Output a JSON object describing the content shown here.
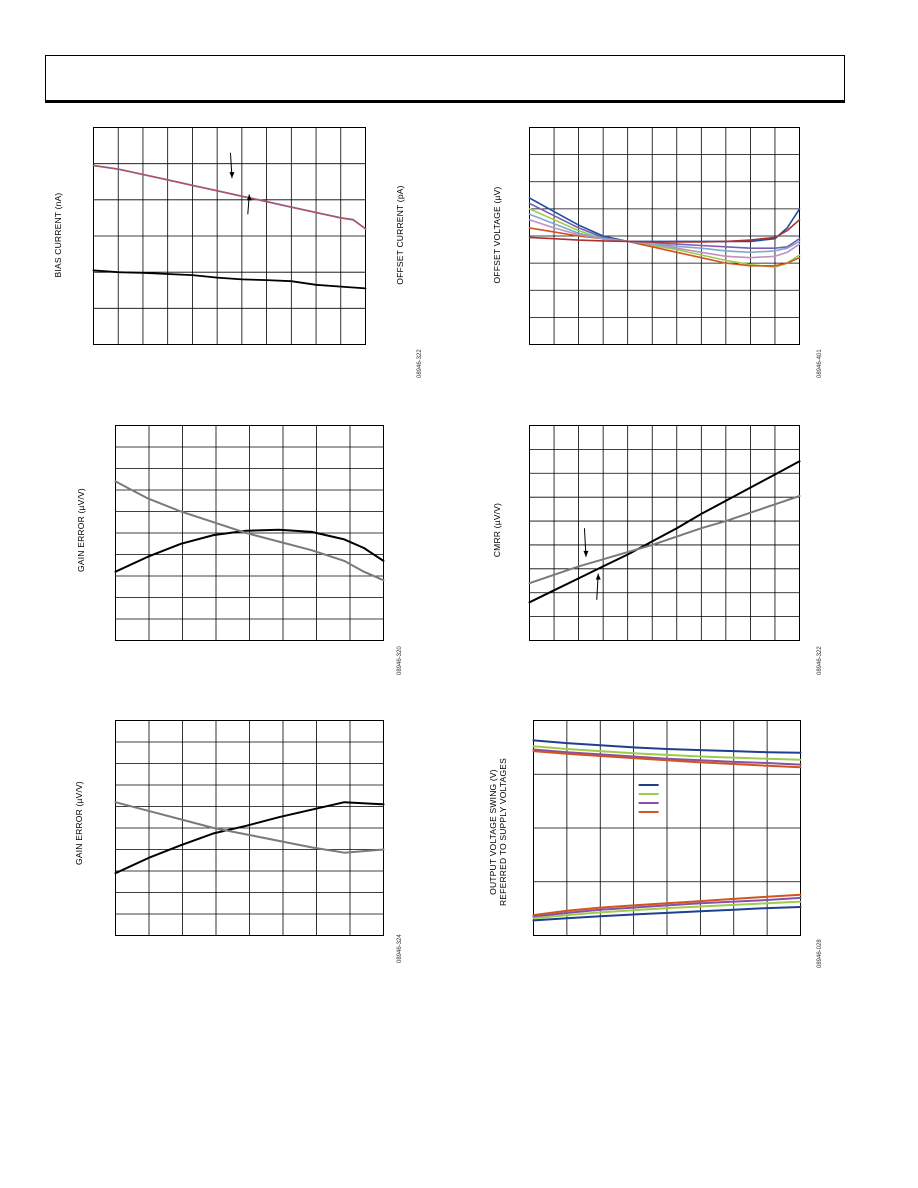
{
  "colors": {
    "black": "#000000",
    "gray": "#7a7a7a",
    "blue": "#1f3f8f",
    "green": "#9ccc4a",
    "purple": "#8a4fa6",
    "orange": "#d2541e",
    "grid": "#000000"
  },
  "chart_data": [
    {
      "id": "bias-offset",
      "type": "line",
      "ylabel": "BIAS CURRENT (nA)",
      "y2label": "OFFSET CURRENT (pA)",
      "code": "08946-322",
      "xlim": [
        0,
        11
      ],
      "ylim": [
        0,
        6
      ],
      "grid": {
        "vcols": 11,
        "hrows": 6
      },
      "series": [
        {
          "color": "#7a5fb0",
          "width": 1.8,
          "x": [
            0,
            1,
            2,
            3,
            4,
            5,
            6,
            7,
            8,
            9,
            10,
            10.5,
            11
          ],
          "y": [
            4.95,
            4.85,
            4.7,
            4.55,
            4.4,
            4.25,
            4.1,
            3.95,
            3.8,
            3.65,
            3.5,
            3.45,
            3.2
          ]
        },
        {
          "color": "#c0504d",
          "width": 1.0,
          "x": [
            0,
            1,
            2,
            3,
            4,
            5,
            6,
            7,
            8,
            9,
            10,
            10.5,
            11
          ],
          "y": [
            4.95,
            4.85,
            4.7,
            4.55,
            4.4,
            4.25,
            4.1,
            3.95,
            3.8,
            3.65,
            3.5,
            3.45,
            3.2
          ]
        },
        {
          "color": "#000000",
          "width": 1.8,
          "x": [
            0,
            1,
            2,
            3,
            4,
            5,
            6,
            7,
            8,
            9,
            10,
            11
          ],
          "y": [
            2.05,
            2.0,
            1.98,
            1.95,
            1.92,
            1.85,
            1.8,
            1.78,
            1.75,
            1.65,
            1.6,
            1.55
          ]
        }
      ],
      "arrows": [
        {
          "x": 5.6,
          "y1": 5.3,
          "y2": 4.6
        },
        {
          "x": 6.3,
          "y1": 3.6,
          "y2": 4.15
        }
      ]
    },
    {
      "id": "offset-voltage",
      "type": "line",
      "ylabel": "OFFSET VOLTAGE (µV)",
      "code": "08946-401",
      "xlim": [
        0,
        11
      ],
      "ylim": [
        0,
        8
      ],
      "grid": {
        "vcols": 11,
        "hrows": 8
      },
      "series": [
        {
          "color": "#1f4f9f",
          "width": 1.6,
          "x": [
            0,
            1,
            2,
            3,
            4,
            5,
            6,
            7,
            8,
            9,
            10,
            10.5,
            11
          ],
          "y": [
            5.4,
            4.9,
            4.4,
            4.0,
            3.8,
            3.8,
            3.8,
            3.8,
            3.8,
            3.8,
            3.9,
            4.3,
            5.0
          ]
        },
        {
          "color": "#7a5fb0",
          "width": 1.6,
          "x": [
            0,
            1,
            2,
            3,
            4,
            5,
            6,
            7,
            8,
            9,
            10,
            10.5,
            11
          ],
          "y": [
            5.2,
            4.75,
            4.3,
            3.95,
            3.8,
            3.75,
            3.7,
            3.65,
            3.6,
            3.55,
            3.55,
            3.6,
            3.9
          ]
        },
        {
          "color": "#9ccc4a",
          "width": 1.6,
          "x": [
            0,
            1,
            2,
            3,
            4,
            5,
            6,
            7,
            8,
            9,
            10,
            10.5,
            11
          ],
          "y": [
            5.0,
            4.6,
            4.2,
            3.9,
            3.8,
            3.65,
            3.5,
            3.3,
            3.1,
            2.95,
            2.85,
            3.0,
            3.3
          ]
        },
        {
          "color": "#d2541e",
          "width": 1.6,
          "x": [
            0,
            1,
            2,
            3,
            4,
            5,
            6,
            7,
            8,
            9,
            10,
            10.5,
            11
          ],
          "y": [
            4.3,
            4.15,
            4.0,
            3.9,
            3.8,
            3.6,
            3.4,
            3.2,
            3.0,
            2.9,
            2.9,
            3.0,
            3.2
          ]
        },
        {
          "color": "#c090c0",
          "width": 1.6,
          "x": [
            0,
            1,
            2,
            3,
            4,
            5,
            6,
            7,
            8,
            9,
            10,
            10.5,
            11
          ],
          "y": [
            4.6,
            4.3,
            4.05,
            3.9,
            3.8,
            3.7,
            3.55,
            3.4,
            3.25,
            3.2,
            3.25,
            3.4,
            3.7
          ]
        },
        {
          "color": "#80a8d0",
          "width": 1.6,
          "x": [
            0,
            1,
            2,
            3,
            4,
            5,
            6,
            7,
            8,
            9,
            10,
            10.5,
            11
          ],
          "y": [
            4.8,
            4.45,
            4.1,
            3.9,
            3.8,
            3.72,
            3.62,
            3.55,
            3.45,
            3.4,
            3.45,
            3.55,
            3.8
          ]
        },
        {
          "color": "#b03030",
          "width": 1.6,
          "x": [
            0,
            1,
            2,
            3,
            4,
            5,
            6,
            7,
            8,
            9,
            10,
            10.5,
            11
          ],
          "y": [
            3.95,
            3.9,
            3.85,
            3.82,
            3.8,
            3.78,
            3.78,
            3.78,
            3.8,
            3.85,
            3.95,
            4.2,
            4.6
          ]
        }
      ]
    },
    {
      "id": "gain-error-1",
      "type": "line",
      "ylabel": "GAIN ERROR (µV/V)",
      "code": "08946-320",
      "xlim": [
        0,
        8.2
      ],
      "ylim": [
        0,
        10
      ],
      "grid": {
        "vcols": 8,
        "hrows": 10
      },
      "series": [
        {
          "color": "#000000",
          "width": 2.0,
          "x": [
            0,
            1,
            2,
            3,
            4,
            5,
            6,
            7,
            7.6,
            8.2
          ],
          "y": [
            3.2,
            3.9,
            4.5,
            4.9,
            5.1,
            5.15,
            5.05,
            4.7,
            4.3,
            3.7
          ]
        },
        {
          "color": "#7a7a7a",
          "width": 2.0,
          "x": [
            0,
            1,
            2,
            3,
            4,
            5,
            6,
            7,
            7.6,
            8.2
          ],
          "y": [
            7.4,
            6.6,
            6.0,
            5.5,
            5.0,
            4.6,
            4.2,
            3.7,
            3.2,
            2.8
          ]
        }
      ]
    },
    {
      "id": "cmrr",
      "type": "line",
      "ylabel": "CMRR (µV/V)",
      "code": "08946-322",
      "xlim": [
        0,
        11
      ],
      "ylim": [
        0,
        9
      ],
      "grid": {
        "vcols": 11,
        "hrows": 9
      },
      "series": [
        {
          "color": "#000000",
          "width": 2.0,
          "x": [
            0,
            1,
            2,
            3,
            4,
            5,
            6,
            7,
            8,
            9,
            10,
            11
          ],
          "y": [
            1.6,
            2.1,
            2.6,
            3.1,
            3.6,
            4.15,
            4.7,
            5.3,
            5.85,
            6.4,
            6.95,
            7.5
          ]
        },
        {
          "color": "#7a7a7a",
          "width": 2.0,
          "x": [
            0,
            1,
            2,
            3,
            4,
            5,
            6,
            7,
            8,
            9,
            10,
            11
          ],
          "y": [
            2.4,
            2.75,
            3.1,
            3.4,
            3.7,
            4.0,
            4.35,
            4.7,
            5.0,
            5.35,
            5.7,
            6.05
          ]
        }
      ],
      "arrows": [
        {
          "x": 2.3,
          "y1": 4.7,
          "y2": 3.5
        },
        {
          "x": 2.8,
          "y1": 1.7,
          "y2": 2.8
        }
      ]
    },
    {
      "id": "gain-error-2",
      "type": "line",
      "ylabel": "GAIN ERROR (µV/V)",
      "code": "08946-324",
      "xlim": [
        0,
        8.2
      ],
      "ylim": [
        0,
        10
      ],
      "grid": {
        "vcols": 8,
        "hrows": 10
      },
      "series": [
        {
          "color": "#000000",
          "width": 2.0,
          "x": [
            0,
            1,
            2,
            3,
            4,
            5,
            6,
            7,
            8.2
          ],
          "y": [
            2.9,
            3.6,
            4.2,
            4.75,
            5.1,
            5.5,
            5.85,
            6.2,
            6.1
          ]
        },
        {
          "color": "#7a7a7a",
          "width": 2.0,
          "x": [
            0,
            1,
            2,
            3,
            4,
            5,
            6,
            7,
            8.2
          ],
          "y": [
            6.2,
            5.8,
            5.4,
            5.0,
            4.7,
            4.4,
            4.1,
            3.85,
            4.0
          ]
        }
      ]
    },
    {
      "id": "output-swing",
      "type": "line",
      "ylabel": "OUTPUT VOLTAGE SWING (V)",
      "ylabel2": "REFERRED TO SUPPLY VOLTAGES",
      "code": "08946-028",
      "xlim": [
        0,
        8
      ],
      "ylim": [
        0,
        4
      ],
      "grid": {
        "vcols": 8,
        "hrows": 4
      },
      "vgrid_partial": true,
      "legend_colors": [
        "#1f3f8f",
        "#9ccc4a",
        "#8a4fa6",
        "#d2541e"
      ],
      "series": [
        {
          "color": "#1f3f8f",
          "width": 2.0,
          "x": [
            0,
            1,
            2,
            3,
            4,
            5,
            6,
            7,
            8
          ],
          "y": [
            3.63,
            3.58,
            3.54,
            3.5,
            3.47,
            3.45,
            3.43,
            3.41,
            3.4
          ]
        },
        {
          "color": "#9ccc4a",
          "width": 2.0,
          "x": [
            0,
            1,
            2,
            3,
            4,
            5,
            6,
            7,
            8
          ],
          "y": [
            3.52,
            3.47,
            3.43,
            3.39,
            3.36,
            3.33,
            3.31,
            3.29,
            3.27
          ]
        },
        {
          "color": "#8a4fa6",
          "width": 2.0,
          "x": [
            0,
            1,
            2,
            3,
            4,
            5,
            6,
            7,
            8
          ],
          "y": [
            3.46,
            3.41,
            3.37,
            3.33,
            3.29,
            3.26,
            3.23,
            3.21,
            3.18
          ]
        },
        {
          "color": "#d2541e",
          "width": 2.0,
          "x": [
            0,
            1,
            2,
            3,
            4,
            5,
            6,
            7,
            8
          ],
          "y": [
            3.43,
            3.38,
            3.34,
            3.3,
            3.26,
            3.22,
            3.19,
            3.16,
            3.13
          ]
        },
        {
          "color": "#d2541e",
          "width": 2.0,
          "x": [
            0,
            1,
            2,
            3,
            4,
            5,
            6,
            7,
            8
          ],
          "y": [
            0.38,
            0.46,
            0.52,
            0.56,
            0.6,
            0.64,
            0.68,
            0.72,
            0.76
          ]
        },
        {
          "color": "#8a4fa6",
          "width": 2.0,
          "x": [
            0,
            1,
            2,
            3,
            4,
            5,
            6,
            7,
            8
          ],
          "y": [
            0.35,
            0.42,
            0.48,
            0.52,
            0.56,
            0.6,
            0.63,
            0.66,
            0.7
          ]
        },
        {
          "color": "#9ccc4a",
          "width": 2.0,
          "x": [
            0,
            1,
            2,
            3,
            4,
            5,
            6,
            7,
            8
          ],
          "y": [
            0.32,
            0.38,
            0.43,
            0.47,
            0.51,
            0.54,
            0.57,
            0.6,
            0.63
          ]
        },
        {
          "color": "#1f3f8f",
          "width": 2.0,
          "x": [
            0,
            1,
            2,
            3,
            4,
            5,
            6,
            7,
            8
          ],
          "y": [
            0.28,
            0.32,
            0.36,
            0.39,
            0.42,
            0.45,
            0.48,
            0.51,
            0.53
          ]
        }
      ]
    }
  ]
}
